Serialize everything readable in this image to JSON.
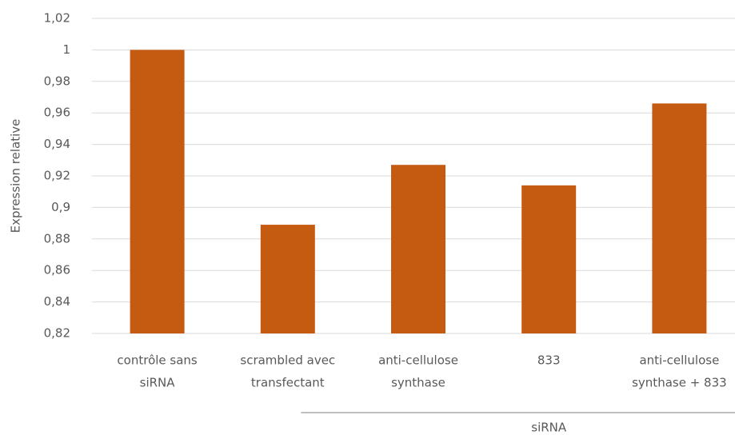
{
  "chart_data": {
    "type": "bar",
    "y_axis_label": "Expression relative",
    "categories": [
      [
        "contrôle sans",
        "siRNA"
      ],
      [
        "scrambled avec",
        "transfectant"
      ],
      [
        "anti-cellulose",
        "synthase"
      ],
      [
        "833"
      ],
      [
        "anti-cellulose",
        "synthase + 833"
      ]
    ],
    "values": [
      1.0,
      0.889,
      0.927,
      0.914,
      0.966
    ],
    "color": "#c55a11",
    "ylim": [
      0.82,
      1.02
    ],
    "yticks": [
      {
        "value": 0.82,
        "label": "0,82"
      },
      {
        "value": 0.84,
        "label": "0,84"
      },
      {
        "value": 0.86,
        "label": "0,86"
      },
      {
        "value": 0.88,
        "label": "0,88"
      },
      {
        "value": 0.9,
        "label": "0,9"
      },
      {
        "value": 0.92,
        "label": "0,92"
      },
      {
        "value": 0.94,
        "label": "0,94"
      },
      {
        "value": 0.96,
        "label": "0,96"
      },
      {
        "value": 0.98,
        "label": "0,98"
      },
      1,
      {
        "value": 1.02,
        "label": "1,02"
      }
    ],
    "grid": true,
    "group_label": "siRNA"
  }
}
